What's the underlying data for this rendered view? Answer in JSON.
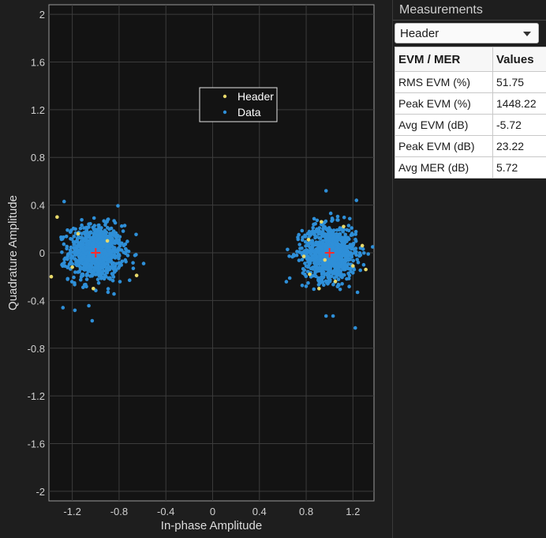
{
  "chart_data": {
    "type": "scatter",
    "title": "",
    "xlabel": "In-phase Amplitude",
    "ylabel": "Quadrature Amplitude",
    "xlim": [
      -1.4,
      1.38
    ],
    "ylim": [
      -2.08,
      2.08
    ],
    "x_ticks": [
      -1.2,
      -0.8,
      -0.4,
      0,
      0.4,
      0.8,
      1.2
    ],
    "y_ticks": [
      2,
      1.6,
      1.2,
      0.8,
      0.4,
      0,
      -0.4,
      -0.8,
      -1.2,
      -1.6,
      -2
    ],
    "x_tick_labels": [
      "-1.2",
      "-0.8",
      "-0.4",
      "0",
      "0.4",
      "0.8",
      "1.2"
    ],
    "y_tick_labels": [
      "2",
      "1.6",
      "1.2",
      "0.8",
      "0.4",
      "0",
      "-0.4",
      "-0.8",
      "-1.2",
      "-1.6",
      "-2"
    ],
    "grid": true,
    "legend": {
      "position": "upper-center",
      "entries": [
        "Header",
        "Data"
      ]
    },
    "series": [
      {
        "name": "Header",
        "color": "#e8d96a",
        "points": [
          [
            -1.33,
            0.3
          ],
          [
            -1.38,
            -0.2
          ],
          [
            -1.15,
            0.16
          ],
          [
            -0.65,
            -0.19
          ],
          [
            -1.02,
            -0.3
          ],
          [
            -1.2,
            -0.12
          ],
          [
            -0.9,
            0.1
          ],
          [
            0.93,
            0.26
          ],
          [
            0.83,
            -0.18
          ],
          [
            0.91,
            -0.3
          ],
          [
            0.78,
            -0.03
          ],
          [
            1.28,
            0.06
          ],
          [
            1.2,
            -0.11
          ],
          [
            0.82,
            0.11
          ],
          [
            1.12,
            0.22
          ],
          [
            1.05,
            -0.24
          ],
          [
            0.96,
            -0.06
          ],
          [
            1.31,
            -0.14
          ]
        ]
      },
      {
        "name": "Data",
        "color": "#2e8fd8",
        "clusters": [
          {
            "center": [
              -1,
              0
            ],
            "count": 900
          },
          {
            "center": [
              1,
              0
            ],
            "count": 900
          }
        ],
        "outliers": [
          [
            -1.03,
            -0.57
          ],
          [
            1.22,
            -0.63
          ],
          [
            0.97,
            0.52
          ],
          [
            1.03,
            -0.53
          ],
          [
            0.97,
            -0.53
          ],
          [
            -1.28,
            -0.46
          ],
          [
            1.23,
            0.44
          ],
          [
            -1.27,
            0.43
          ],
          [
            -0.71,
            -0.23
          ],
          [
            -0.59,
            -0.09
          ]
        ]
      }
    ],
    "reference_points": {
      "marker": "+",
      "color": "#ff2a2a",
      "points": [
        [
          -1,
          0
        ],
        [
          1,
          0
        ]
      ]
    }
  },
  "panel": {
    "title": "Measurements",
    "dropdown": {
      "selected": "Header"
    },
    "table": {
      "headers": [
        "EVM / MER",
        "Values"
      ],
      "rows": [
        [
          "RMS EVM (%)",
          "51.75"
        ],
        [
          "Peak EVM (%)",
          "1448.22"
        ],
        [
          "Avg EVM (dB)",
          "-5.72"
        ],
        [
          "Peak EVM (dB)",
          "23.22"
        ],
        [
          "Avg MER (dB)",
          "5.72"
        ]
      ]
    }
  }
}
